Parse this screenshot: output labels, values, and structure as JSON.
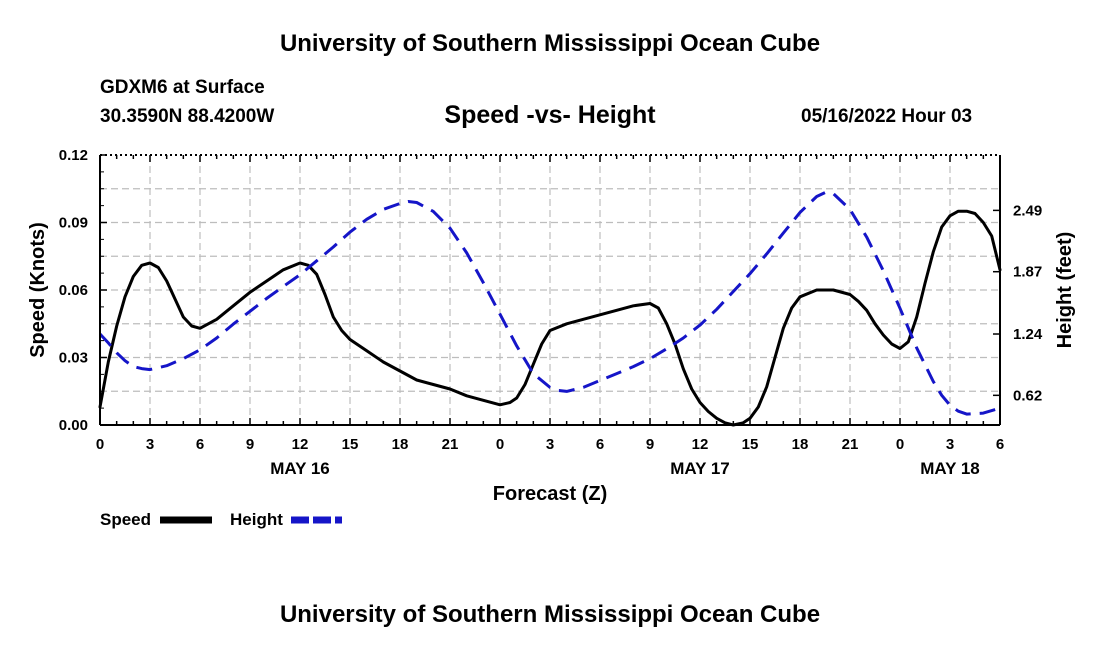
{
  "header": {
    "title": "University of Southern Mississippi Ocean Cube",
    "station": "GDXM6 at Surface",
    "coords": "30.3590N  88.4200W",
    "subtitle": "Speed -vs- Height",
    "datetime": "05/16/2022 Hour 03"
  },
  "footer": {
    "title": "University of Southern Mississippi Ocean Cube"
  },
  "chart_data": {
    "type": "line",
    "title": "Speed -vs- Height",
    "xlabel": "Forecast (Z)",
    "ylabel": "Speed (Knots)",
    "y2label": "Height (feet)",
    "x_range_hours": [
      0,
      54
    ],
    "x_ticks": [
      {
        "hour": 0,
        "label": "0"
      },
      {
        "hour": 3,
        "label": "3"
      },
      {
        "hour": 6,
        "label": "6"
      },
      {
        "hour": 9,
        "label": "9"
      },
      {
        "hour": 12,
        "label": "12"
      },
      {
        "hour": 15,
        "label": "15"
      },
      {
        "hour": 18,
        "label": "18"
      },
      {
        "hour": 21,
        "label": "21"
      },
      {
        "hour": 24,
        "label": "0"
      },
      {
        "hour": 27,
        "label": "3"
      },
      {
        "hour": 30,
        "label": "6"
      },
      {
        "hour": 33,
        "label": "9"
      },
      {
        "hour": 36,
        "label": "12"
      },
      {
        "hour": 39,
        "label": "15"
      },
      {
        "hour": 42,
        "label": "18"
      },
      {
        "hour": 45,
        "label": "21"
      },
      {
        "hour": 48,
        "label": "0"
      },
      {
        "hour": 51,
        "label": "3"
      },
      {
        "hour": 54,
        "label": "6"
      }
    ],
    "date_labels": [
      {
        "hour": 12,
        "label": "MAY 16"
      },
      {
        "hour": 36,
        "label": "MAY 17"
      },
      {
        "hour": 51,
        "label": "MAY 18"
      }
    ],
    "y_left": {
      "range": [
        0,
        0.12
      ],
      "ticks": [
        "0.00",
        "0.03",
        "0.06",
        "0.09",
        "0.12"
      ]
    },
    "y_right": {
      "range": [
        0.32,
        3.05
      ],
      "ticks": [
        {
          "value": 0.62,
          "label": "0.62"
        },
        {
          "value": 1.24,
          "label": "1.24"
        },
        {
          "value": 1.87,
          "label": "1.87"
        },
        {
          "value": 2.49,
          "label": "2.49"
        }
      ]
    },
    "series": [
      {
        "name": "Speed",
        "axis": "left",
        "color": "#000000",
        "style": "solid",
        "points": [
          [
            0,
            0.008
          ],
          [
            0.5,
            0.028
          ],
          [
            1,
            0.044
          ],
          [
            1.5,
            0.057
          ],
          [
            2,
            0.066
          ],
          [
            2.5,
            0.071
          ],
          [
            3,
            0.072
          ],
          [
            3.5,
            0.07
          ],
          [
            4,
            0.064
          ],
          [
            4.5,
            0.056
          ],
          [
            5,
            0.048
          ],
          [
            5.5,
            0.044
          ],
          [
            6,
            0.043
          ],
          [
            7,
            0.047
          ],
          [
            8,
            0.053
          ],
          [
            9,
            0.059
          ],
          [
            10,
            0.064
          ],
          [
            11,
            0.069
          ],
          [
            12,
            0.072
          ],
          [
            12.5,
            0.071
          ],
          [
            13,
            0.067
          ],
          [
            13.5,
            0.058
          ],
          [
            14,
            0.048
          ],
          [
            14.5,
            0.042
          ],
          [
            15,
            0.038
          ],
          [
            16,
            0.033
          ],
          [
            17,
            0.028
          ],
          [
            18,
            0.024
          ],
          [
            19,
            0.02
          ],
          [
            20,
            0.018
          ],
          [
            21,
            0.016
          ],
          [
            22,
            0.013
          ],
          [
            23,
            0.011
          ],
          [
            24,
            0.009
          ],
          [
            24.6,
            0.01
          ],
          [
            25,
            0.012
          ],
          [
            25.5,
            0.018
          ],
          [
            26,
            0.027
          ],
          [
            26.5,
            0.036
          ],
          [
            27,
            0.042
          ],
          [
            28,
            0.045
          ],
          [
            29,
            0.047
          ],
          [
            30,
            0.049
          ],
          [
            31,
            0.051
          ],
          [
            32,
            0.053
          ],
          [
            33,
            0.054
          ],
          [
            33.5,
            0.052
          ],
          [
            34,
            0.045
          ],
          [
            34.5,
            0.036
          ],
          [
            35,
            0.025
          ],
          [
            35.5,
            0.016
          ],
          [
            36,
            0.01
          ],
          [
            36.5,
            0.006
          ],
          [
            37,
            0.003
          ],
          [
            37.5,
            0.001
          ],
          [
            38,
            0.0
          ],
          [
            38.6,
            0.001
          ],
          [
            39,
            0.003
          ],
          [
            39.5,
            0.008
          ],
          [
            40,
            0.017
          ],
          [
            40.5,
            0.03
          ],
          [
            41,
            0.043
          ],
          [
            41.5,
            0.052
          ],
          [
            42,
            0.057
          ],
          [
            43,
            0.06
          ],
          [
            44,
            0.06
          ],
          [
            45,
            0.058
          ],
          [
            45.5,
            0.055
          ],
          [
            46,
            0.051
          ],
          [
            46.5,
            0.045
          ],
          [
            47,
            0.04
          ],
          [
            47.5,
            0.036
          ],
          [
            48,
            0.034
          ],
          [
            48.5,
            0.037
          ],
          [
            49,
            0.048
          ],
          [
            49.5,
            0.063
          ],
          [
            50,
            0.077
          ],
          [
            50.5,
            0.088
          ],
          [
            51,
            0.093
          ],
          [
            51.5,
            0.095
          ],
          [
            52,
            0.095
          ],
          [
            52.5,
            0.094
          ],
          [
            53,
            0.09
          ],
          [
            53.5,
            0.084
          ],
          [
            54,
            0.069
          ]
        ]
      },
      {
        "name": "Height",
        "axis": "right",
        "color": "#1515c8",
        "style": "dashed",
        "points": [
          [
            0,
            1.24
          ],
          [
            0.5,
            1.15
          ],
          [
            1,
            1.05
          ],
          [
            1.5,
            0.97
          ],
          [
            2,
            0.91
          ],
          [
            2.5,
            0.89
          ],
          [
            3,
            0.88
          ],
          [
            4,
            0.92
          ],
          [
            5,
            0.99
          ],
          [
            6,
            1.08
          ],
          [
            7,
            1.2
          ],
          [
            8,
            1.34
          ],
          [
            9,
            1.47
          ],
          [
            10,
            1.6
          ],
          [
            11,
            1.72
          ],
          [
            12,
            1.84
          ],
          [
            13,
            1.98
          ],
          [
            14,
            2.12
          ],
          [
            15,
            2.27
          ],
          [
            16,
            2.4
          ],
          [
            17,
            2.5
          ],
          [
            18,
            2.56
          ],
          [
            18.5,
            2.58
          ],
          [
            19,
            2.57
          ],
          [
            20,
            2.48
          ],
          [
            21,
            2.31
          ],
          [
            22,
            2.06
          ],
          [
            23,
            1.76
          ],
          [
            24,
            1.44
          ],
          [
            25,
            1.12
          ],
          [
            26,
            0.84
          ],
          [
            27,
            0.7
          ],
          [
            27.5,
            0.67
          ],
          [
            28,
            0.66
          ],
          [
            29,
            0.7
          ],
          [
            30,
            0.77
          ],
          [
            31,
            0.84
          ],
          [
            32,
            0.91
          ],
          [
            33,
            0.99
          ],
          [
            34,
            1.09
          ],
          [
            35,
            1.2
          ],
          [
            36,
            1.33
          ],
          [
            37,
            1.49
          ],
          [
            38,
            1.67
          ],
          [
            39,
            1.85
          ],
          [
            40,
            2.05
          ],
          [
            41,
            2.26
          ],
          [
            42,
            2.47
          ],
          [
            43,
            2.63
          ],
          [
            43.5,
            2.67
          ],
          [
            44,
            2.66
          ],
          [
            45,
            2.5
          ],
          [
            46,
            2.22
          ],
          [
            47,
            1.88
          ],
          [
            48,
            1.5
          ],
          [
            49,
            1.1
          ],
          [
            50,
            0.76
          ],
          [
            50.5,
            0.62
          ],
          [
            51,
            0.52
          ],
          [
            51.5,
            0.46
          ],
          [
            52,
            0.43
          ],
          [
            53,
            0.44
          ],
          [
            54,
            0.49
          ]
        ]
      }
    ],
    "legend": {
      "position": "bottom-left",
      "items": [
        {
          "label": "Speed",
          "color": "#000000"
        },
        {
          "label": "Height",
          "color": "#1515c8"
        }
      ]
    }
  }
}
